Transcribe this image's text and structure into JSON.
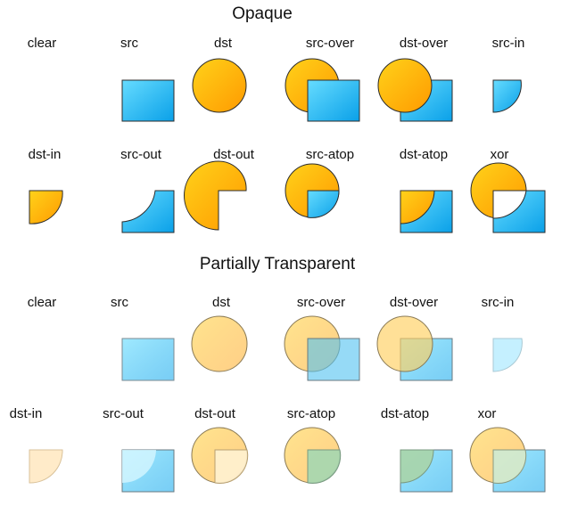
{
  "colors": {
    "source": "#18b4f2",
    "destination": "#ffb800",
    "outline": "#2c2c2c"
  },
  "sections": [
    {
      "title": "Opaque",
      "rows": [
        [
          "clear",
          "src",
          "dst",
          "src-over",
          "dst-over",
          "src-in"
        ],
        [
          "dst-in",
          "src-out",
          "dst-out",
          "src-atop",
          "dst-atop",
          "xor"
        ]
      ]
    },
    {
      "title": "Partially Transparent",
      "rows": [
        [
          "clear",
          "src",
          "dst",
          "src-over",
          "dst-over",
          "src-in"
        ],
        [
          "dst-in",
          "src-out",
          "dst-out",
          "src-atop",
          "dst-atop",
          "xor"
        ]
      ]
    }
  ]
}
